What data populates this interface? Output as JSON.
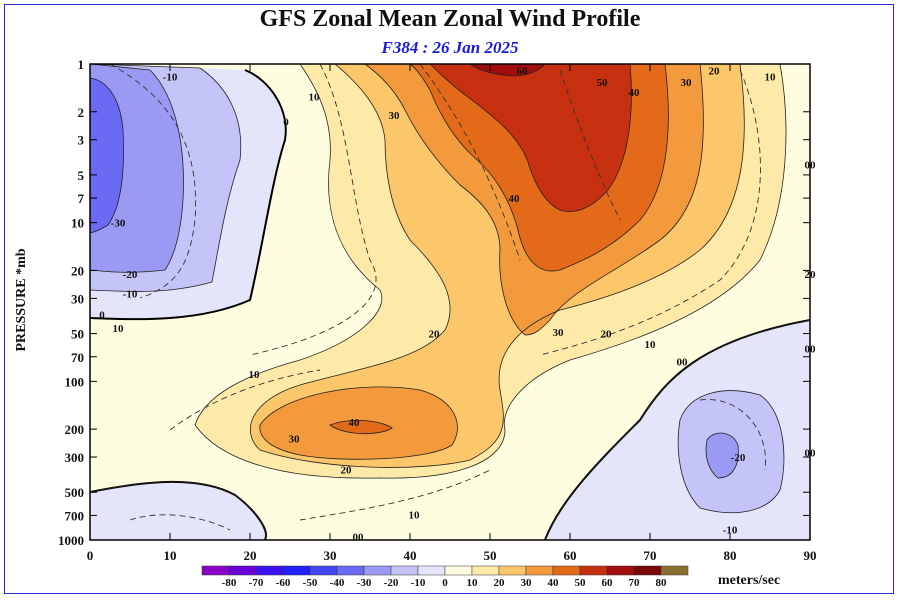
{
  "chart_data": {
    "type": "contour",
    "title": "GFS Zonal Mean Zonal Wind Profile",
    "subtitle": "F384 : 26 Jan 2025",
    "ylabel": "PRESSURE *mb",
    "units_label": "meters/sec",
    "x_ticks": [
      0,
      10,
      20,
      30,
      40,
      50,
      60,
      70,
      80,
      90
    ],
    "xlim": [
      0,
      90
    ],
    "y_ticks": [
      1,
      2,
      3,
      5,
      7,
      10,
      20,
      30,
      50,
      70,
      100,
      200,
      300,
      500,
      700,
      1000
    ],
    "y_scale": "log",
    "ylim": [
      1000,
      1
    ],
    "colorbar": {
      "levels": [
        -80,
        -70,
        -60,
        -50,
        -40,
        -30,
        -20,
        -10,
        0,
        10,
        20,
        30,
        40,
        50,
        60,
        70,
        80
      ],
      "colors": [
        "#8a00c8",
        "#6a00d8",
        "#3a10ee",
        "#2020ff",
        "#4444f2",
        "#6a6af5",
        "#9a9af5",
        "#c4c4f8",
        "#e4e4fb",
        "#fffde0",
        "#fde9a8",
        "#fcc66a",
        "#f29a3c",
        "#e36a18",
        "#c63010",
        "#a20c0c",
        "#7a0606",
        "#8a7030"
      ]
    },
    "contour_labels": [
      {
        "text": "-10",
        "x": 10,
        "p": 1.2
      },
      {
        "text": "10",
        "x": 28,
        "p": 1.6
      },
      {
        "text": "0",
        "x": 24.5,
        "p": 2.3
      },
      {
        "text": "30",
        "x": 38,
        "p": 2.1
      },
      {
        "text": "60",
        "x": 54,
        "p": 1.1
      },
      {
        "text": "50",
        "x": 64,
        "p": 1.3
      },
      {
        "text": "40",
        "x": 68,
        "p": 1.5
      },
      {
        "text": "30",
        "x": 74.5,
        "p": 1.3
      },
      {
        "text": "20",
        "x": 78,
        "p": 1.1
      },
      {
        "text": "10",
        "x": 85,
        "p": 1.2
      },
      {
        "text": "00",
        "x": 90,
        "p": 4.3
      },
      {
        "text": "-30",
        "x": 3.5,
        "p": 10
      },
      {
        "text": "40",
        "x": 53,
        "p": 7
      },
      {
        "text": "20",
        "x": 90,
        "p": 21
      },
      {
        "text": "-20",
        "x": 5,
        "p": 21
      },
      {
        "text": "-10",
        "x": 5,
        "p": 28
      },
      {
        "text": "0",
        "x": 1.5,
        "p": 38
      },
      {
        "text": "10",
        "x": 3.5,
        "p": 46
      },
      {
        "text": "20",
        "x": 43,
        "p": 50
      },
      {
        "text": "30",
        "x": 58.5,
        "p": 49
      },
      {
        "text": "20",
        "x": 64.5,
        "p": 50
      },
      {
        "text": "10",
        "x": 70,
        "p": 58
      },
      {
        "text": "00",
        "x": 90,
        "p": 62
      },
      {
        "text": "00",
        "x": 74,
        "p": 75
      },
      {
        "text": "10",
        "x": 20.5,
        "p": 90
      },
      {
        "text": "40",
        "x": 33,
        "p": 180
      },
      {
        "text": "30",
        "x": 25.5,
        "p": 230
      },
      {
        "text": "-20",
        "x": 81,
        "p": 300
      },
      {
        "text": "00",
        "x": 90,
        "p": 280
      },
      {
        "text": "20",
        "x": 32,
        "p": 360
      },
      {
        "text": "10",
        "x": 40.5,
        "p": 690
      },
      {
        "text": "00",
        "x": 33.5,
        "p": 950
      },
      {
        "text": "-10",
        "x": 80,
        "p": 860
      }
    ]
  }
}
